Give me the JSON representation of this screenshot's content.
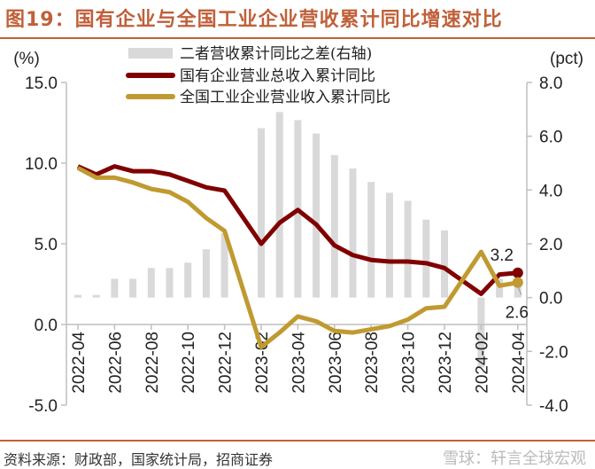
{
  "title": "图19：国有企业与全国工业企业营收累计同比增速对比",
  "source": "资料来源：财政部，国家统计局，招商证券",
  "watermark": "雪球：轩言全球宏观",
  "chart_data": {
    "type": "bar+line",
    "left_unit": "(%)",
    "right_unit": "(pct)",
    "ylim_left": [
      -5,
      15
    ],
    "yticks_left": [
      "15.0",
      "10.0",
      "5.0",
      "0.0",
      "-5.0"
    ],
    "ylim_right": [
      -4,
      8
    ],
    "yticks_right": [
      "8.0",
      "6.0",
      "4.0",
      "2.0",
      "0.0",
      "-2.0",
      "-4.0"
    ],
    "x": [
      "2022-04",
      "2022-05",
      "2022-06",
      "2022-07",
      "2022-08",
      "2022-09",
      "2022-10",
      "2022-11",
      "2022-12",
      "2023-01",
      "2023-02",
      "2023-03",
      "2023-04",
      "2023-05",
      "2023-06",
      "2023-07",
      "2023-08",
      "2023-09",
      "2023-10",
      "2023-11",
      "2023-12",
      "2024-01",
      "2024-02",
      "2024-03",
      "2024-04"
    ],
    "xtick_labels": [
      "2022-04",
      "2022-06",
      "2022-08",
      "2022-10",
      "2022-12",
      "2023-02",
      "2023-04",
      "2023-06",
      "2023-08",
      "2023-10",
      "2023-12",
      "2024-02",
      "2024-04"
    ],
    "series": [
      {
        "name": "二者营收累计同比之差(右轴)",
        "type": "bar",
        "axis": "right",
        "color": "#d9d9d9",
        "values": [
          0.1,
          0.1,
          0.7,
          0.7,
          1.1,
          1.1,
          1.3,
          1.8,
          2.4,
          null,
          6.3,
          6.9,
          6.6,
          6.1,
          5.3,
          4.8,
          4.3,
          3.9,
          3.6,
          2.9,
          2.5,
          null,
          -2.6,
          0.7,
          0.6
        ]
      },
      {
        "name": "国有企业营业总收入累计同比",
        "type": "line",
        "axis": "left",
        "color": "#800000",
        "values": [
          9.8,
          9.3,
          9.8,
          9.5,
          9.5,
          9.3,
          8.9,
          8.5,
          8.3,
          null,
          5.0,
          6.3,
          7.1,
          6.2,
          4.9,
          4.3,
          4.0,
          3.9,
          3.9,
          3.8,
          3.5,
          null,
          1.9,
          3.1,
          3.2
        ]
      },
      {
        "name": "全国工业企业营业收入累计同比",
        "type": "line",
        "axis": "left",
        "color": "#c09a30",
        "values": [
          9.7,
          9.1,
          9.1,
          8.8,
          8.4,
          8.2,
          7.6,
          6.6,
          5.8,
          null,
          -1.4,
          -0.5,
          0.5,
          0.2,
          -0.4,
          -0.5,
          -0.3,
          -0.1,
          0.3,
          1.0,
          1.1,
          null,
          4.5,
          2.4,
          2.6
        ]
      }
    ],
    "annotations": [
      "3.2",
      "2.6"
    ],
    "legend_position": "top"
  }
}
